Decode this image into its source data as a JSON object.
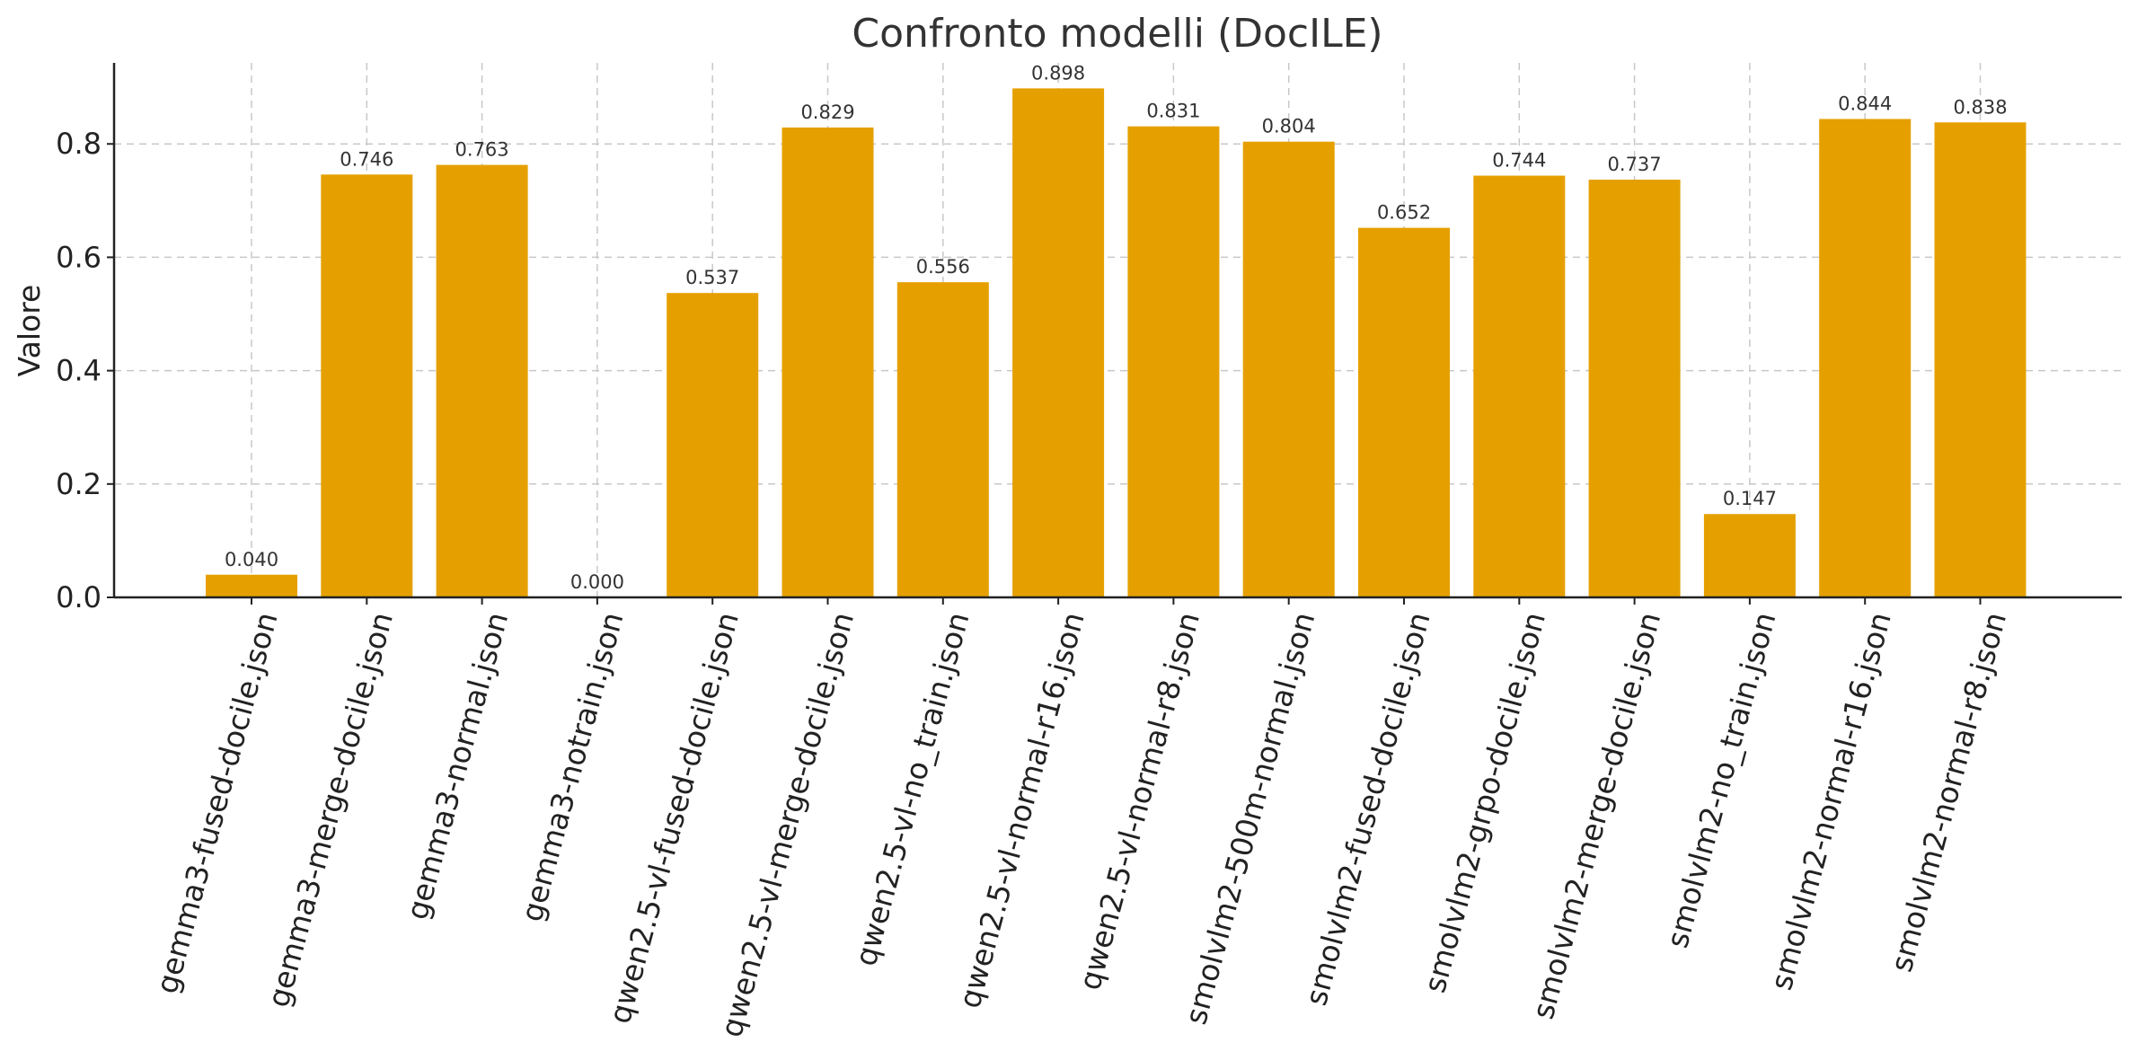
{
  "chart_data": {
    "type": "bar",
    "title": "Confronto modelli (DocILE)",
    "xlabel": "",
    "ylabel": "Valore",
    "ylim": [
      0,
      0.943
    ],
    "yticks": [
      0.0,
      0.2,
      0.4,
      0.6,
      0.8
    ],
    "ytick_labels": [
      "0.0",
      "0.2",
      "0.4",
      "0.6",
      "0.8"
    ],
    "grid": true,
    "color": "#E5A000",
    "categories": [
      "gemma3-fused-docile.json",
      "gemma3-merge-docile.json",
      "gemma3-normal.json",
      "gemma3-notrain.json",
      "qwen2.5-vl-fused-docile.json",
      "qwen2.5-vl-merge-docile.json",
      "qwen2.5-vl-no_train.json",
      "qwen2.5-vl-normal-r16.json",
      "qwen2.5-vl-normal-r8.json",
      "smolvlm2-500m-normal.json",
      "smolvlm2-fused-docile.json",
      "smolvlm2-grpo-docile.json",
      "smolvlm2-merge-docile.json",
      "smolvlm2-no_train.json",
      "smolvlm2-normal-r16.json",
      "smolvlm2-normal-r8.json"
    ],
    "values": [
      0.04,
      0.746,
      0.763,
      0.0,
      0.537,
      0.829,
      0.556,
      0.898,
      0.831,
      0.804,
      0.652,
      0.744,
      0.737,
      0.147,
      0.844,
      0.838
    ],
    "value_labels": [
      "0.040",
      "0.746",
      "0.763",
      "0.000",
      "0.537",
      "0.829",
      "0.556",
      "0.898",
      "0.831",
      "0.804",
      "0.652",
      "0.744",
      "0.737",
      "0.147",
      "0.844",
      "0.838"
    ]
  }
}
